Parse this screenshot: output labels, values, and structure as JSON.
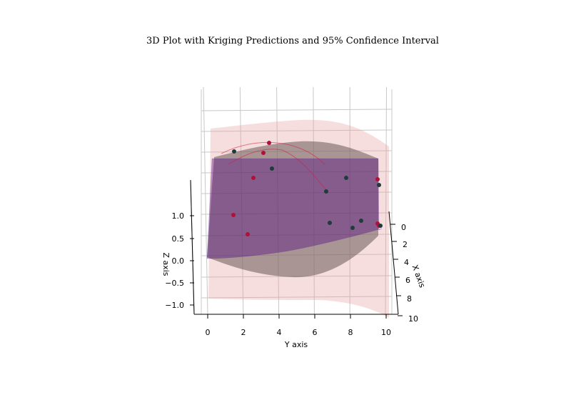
{
  "chart_data": {
    "type": "3d-surface-scatter",
    "title": "3D Plot with Kriging Predictions and 95% Confidence Interval",
    "xlabel": "X axis",
    "ylabel": "Y axis",
    "zlabel": "Z axis",
    "x_ticks": [
      "0",
      "2",
      "4",
      "6",
      "8",
      "10"
    ],
    "y_ticks": [
      "0",
      "2",
      "4",
      "6",
      "8",
      "10"
    ],
    "z_ticks": [
      "1.0",
      "0.5",
      "0.0",
      "−0.5",
      "−1.0"
    ],
    "xlim": [
      0,
      10
    ],
    "ylim": [
      0,
      10
    ],
    "zlim": [
      -1.2,
      1.2
    ],
    "grid": true,
    "series": [
      {
        "kind": "surface",
        "color": "#4b0082"
      },
      {
        "kind": "surface",
        "color": "#e8a0a0"
      },
      {
        "kind": "surface",
        "color": "#e8a0a0"
      },
      {
        "kind": "scatter",
        "color": "#b0103a",
        "points": [
          {
            "x": 0.0,
            "y": 4.2,
            "z": 1.0
          },
          {
            "x": 1.0,
            "y": 4.0,
            "z": 0.95
          },
          {
            "x": 3.0,
            "y": 2.6,
            "z": 0.55
          },
          {
            "x": 5.5,
            "y": 1.4,
            "z": 0.2
          },
          {
            "x": 7.5,
            "y": 2.2,
            "z": -0.3
          },
          {
            "x": 2.0,
            "y": 9.6,
            "z": 0.35
          },
          {
            "x": 9.5,
            "y": 9.6,
            "z": -0.35
          },
          {
            "x": 9.6,
            "y": 9.7,
            "z": -0.4
          }
        ]
      },
      {
        "kind": "scatter",
        "color": "#1f3b3a",
        "points": [
          {
            "x": 1.0,
            "y": 0.6,
            "z": 0.9
          },
          {
            "x": 3.5,
            "y": 3.3,
            "z": 0.6
          },
          {
            "x": 6.0,
            "y": 6.8,
            "z": 0.05
          },
          {
            "x": 4.0,
            "y": 7.8,
            "z": 0.3
          },
          {
            "x": 3.5,
            "y": 9.6,
            "z": 0.0
          },
          {
            "x": 8.8,
            "y": 7.0,
            "z": -0.5
          },
          {
            "x": 8.0,
            "y": 8.6,
            "z": -0.35
          },
          {
            "x": 9.0,
            "y": 8.1,
            "z": -0.6
          },
          {
            "x": 9.6,
            "y": 9.6,
            "z": -0.4
          },
          {
            "x": 9.8,
            "y": 9.7,
            "z": -0.42
          }
        ]
      }
    ]
  }
}
